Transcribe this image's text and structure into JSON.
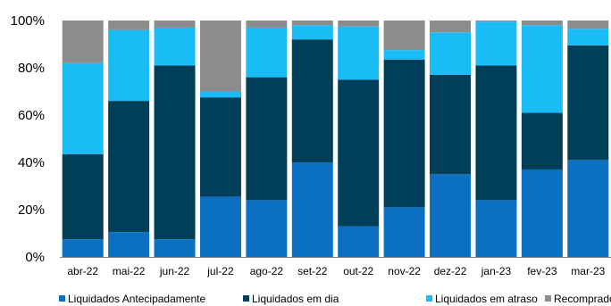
{
  "chart_data": {
    "type": "bar",
    "stacked": true,
    "normalized": true,
    "categories": [
      "abr-22",
      "mai-22",
      "jun-22",
      "jul-22",
      "ago-22",
      "set-22",
      "out-22",
      "nov-22",
      "dez-22",
      "jan-23",
      "fev-23",
      "mar-23"
    ],
    "series": [
      {
        "name": "Liquidados Antecipadamente",
        "color": "#0b6fc2",
        "values": [
          7.5,
          10.5,
          7.5,
          25.5,
          24,
          40,
          13,
          21,
          35,
          24,
          37,
          41
        ]
      },
      {
        "name": "Liquidados em dia",
        "color": "#003f57",
        "values": [
          36,
          55.5,
          73.5,
          42,
          52,
          52,
          62,
          62.5,
          42,
          57,
          24,
          48.5
        ]
      },
      {
        "name": "Liquidados em atraso",
        "color": "#19bcf5",
        "values": [
          38.5,
          30,
          16,
          2.5,
          21,
          6,
          22.5,
          4,
          18,
          18.5,
          37,
          7
        ]
      },
      {
        "name": "Recomprados",
        "color": "#8c8c8c",
        "values": [
          18,
          4,
          3,
          30,
          3,
          2,
          2.5,
          12.5,
          5,
          0.5,
          2,
          3.5
        ]
      }
    ],
    "yticks": [
      "0%",
      "20%",
      "40%",
      "60%",
      "80%",
      "100%"
    ],
    "ylim": [
      0,
      100
    ],
    "grid": false,
    "legend": "bottom",
    "title": "",
    "xlabel": "",
    "ylabel": ""
  }
}
